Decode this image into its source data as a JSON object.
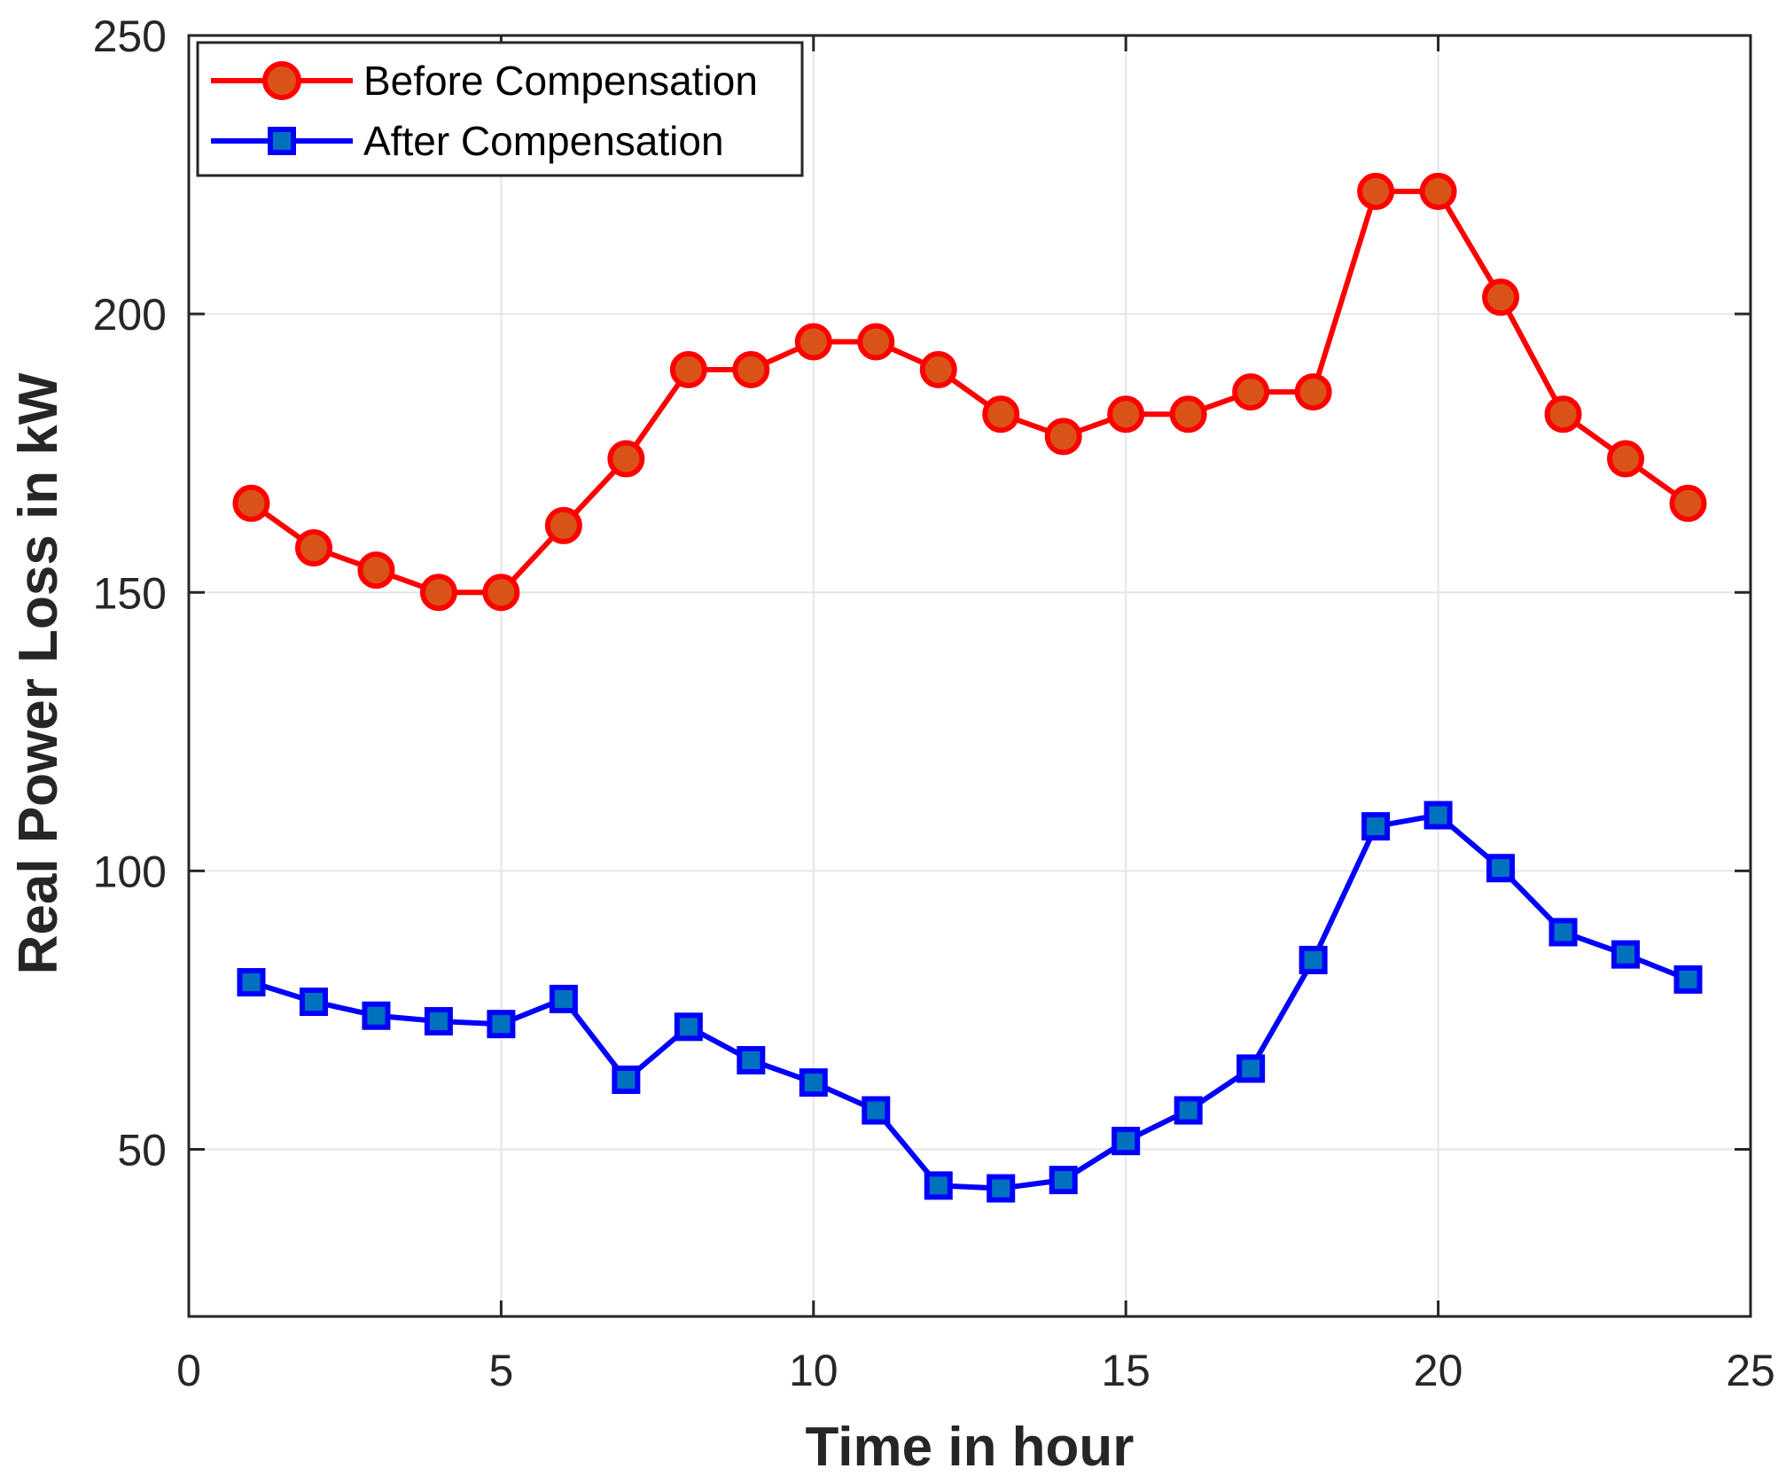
{
  "chart_data": {
    "type": "line",
    "title": "",
    "xlabel": "Time in hour",
    "ylabel": "Real Power Loss in kW",
    "xlim": [
      0,
      25
    ],
    "ylim": [
      20,
      250
    ],
    "xticks": [
      0,
      5,
      10,
      15,
      20,
      25
    ],
    "yticks": [
      50,
      100,
      150,
      200,
      250
    ],
    "grid": true,
    "legend_position": "top-left",
    "x": [
      1,
      2,
      3,
      4,
      5,
      6,
      7,
      8,
      9,
      10,
      11,
      12,
      13,
      14,
      15,
      16,
      17,
      18,
      19,
      20,
      21,
      22,
      23,
      24
    ],
    "series": [
      {
        "name": "Before Compensation",
        "color": "#ff0000",
        "marker": "circle",
        "marker_fill": "#d95319",
        "values": [
          166,
          158,
          154,
          150,
          150,
          162,
          174,
          190,
          190,
          195,
          195,
          190,
          182,
          178,
          182,
          182,
          186,
          186,
          222,
          222,
          203,
          182,
          174,
          166
        ]
      },
      {
        "name": "After Compensation",
        "color": "#0000ff",
        "marker": "square",
        "marker_fill": "#0072bd",
        "values": [
          80,
          76.5,
          74,
          73,
          72.5,
          77,
          62.5,
          72,
          66,
          62,
          57,
          43.5,
          43,
          44.5,
          51.5,
          57,
          64.5,
          84,
          108,
          110,
          100.5,
          89,
          85,
          80.5
        ]
      }
    ]
  }
}
